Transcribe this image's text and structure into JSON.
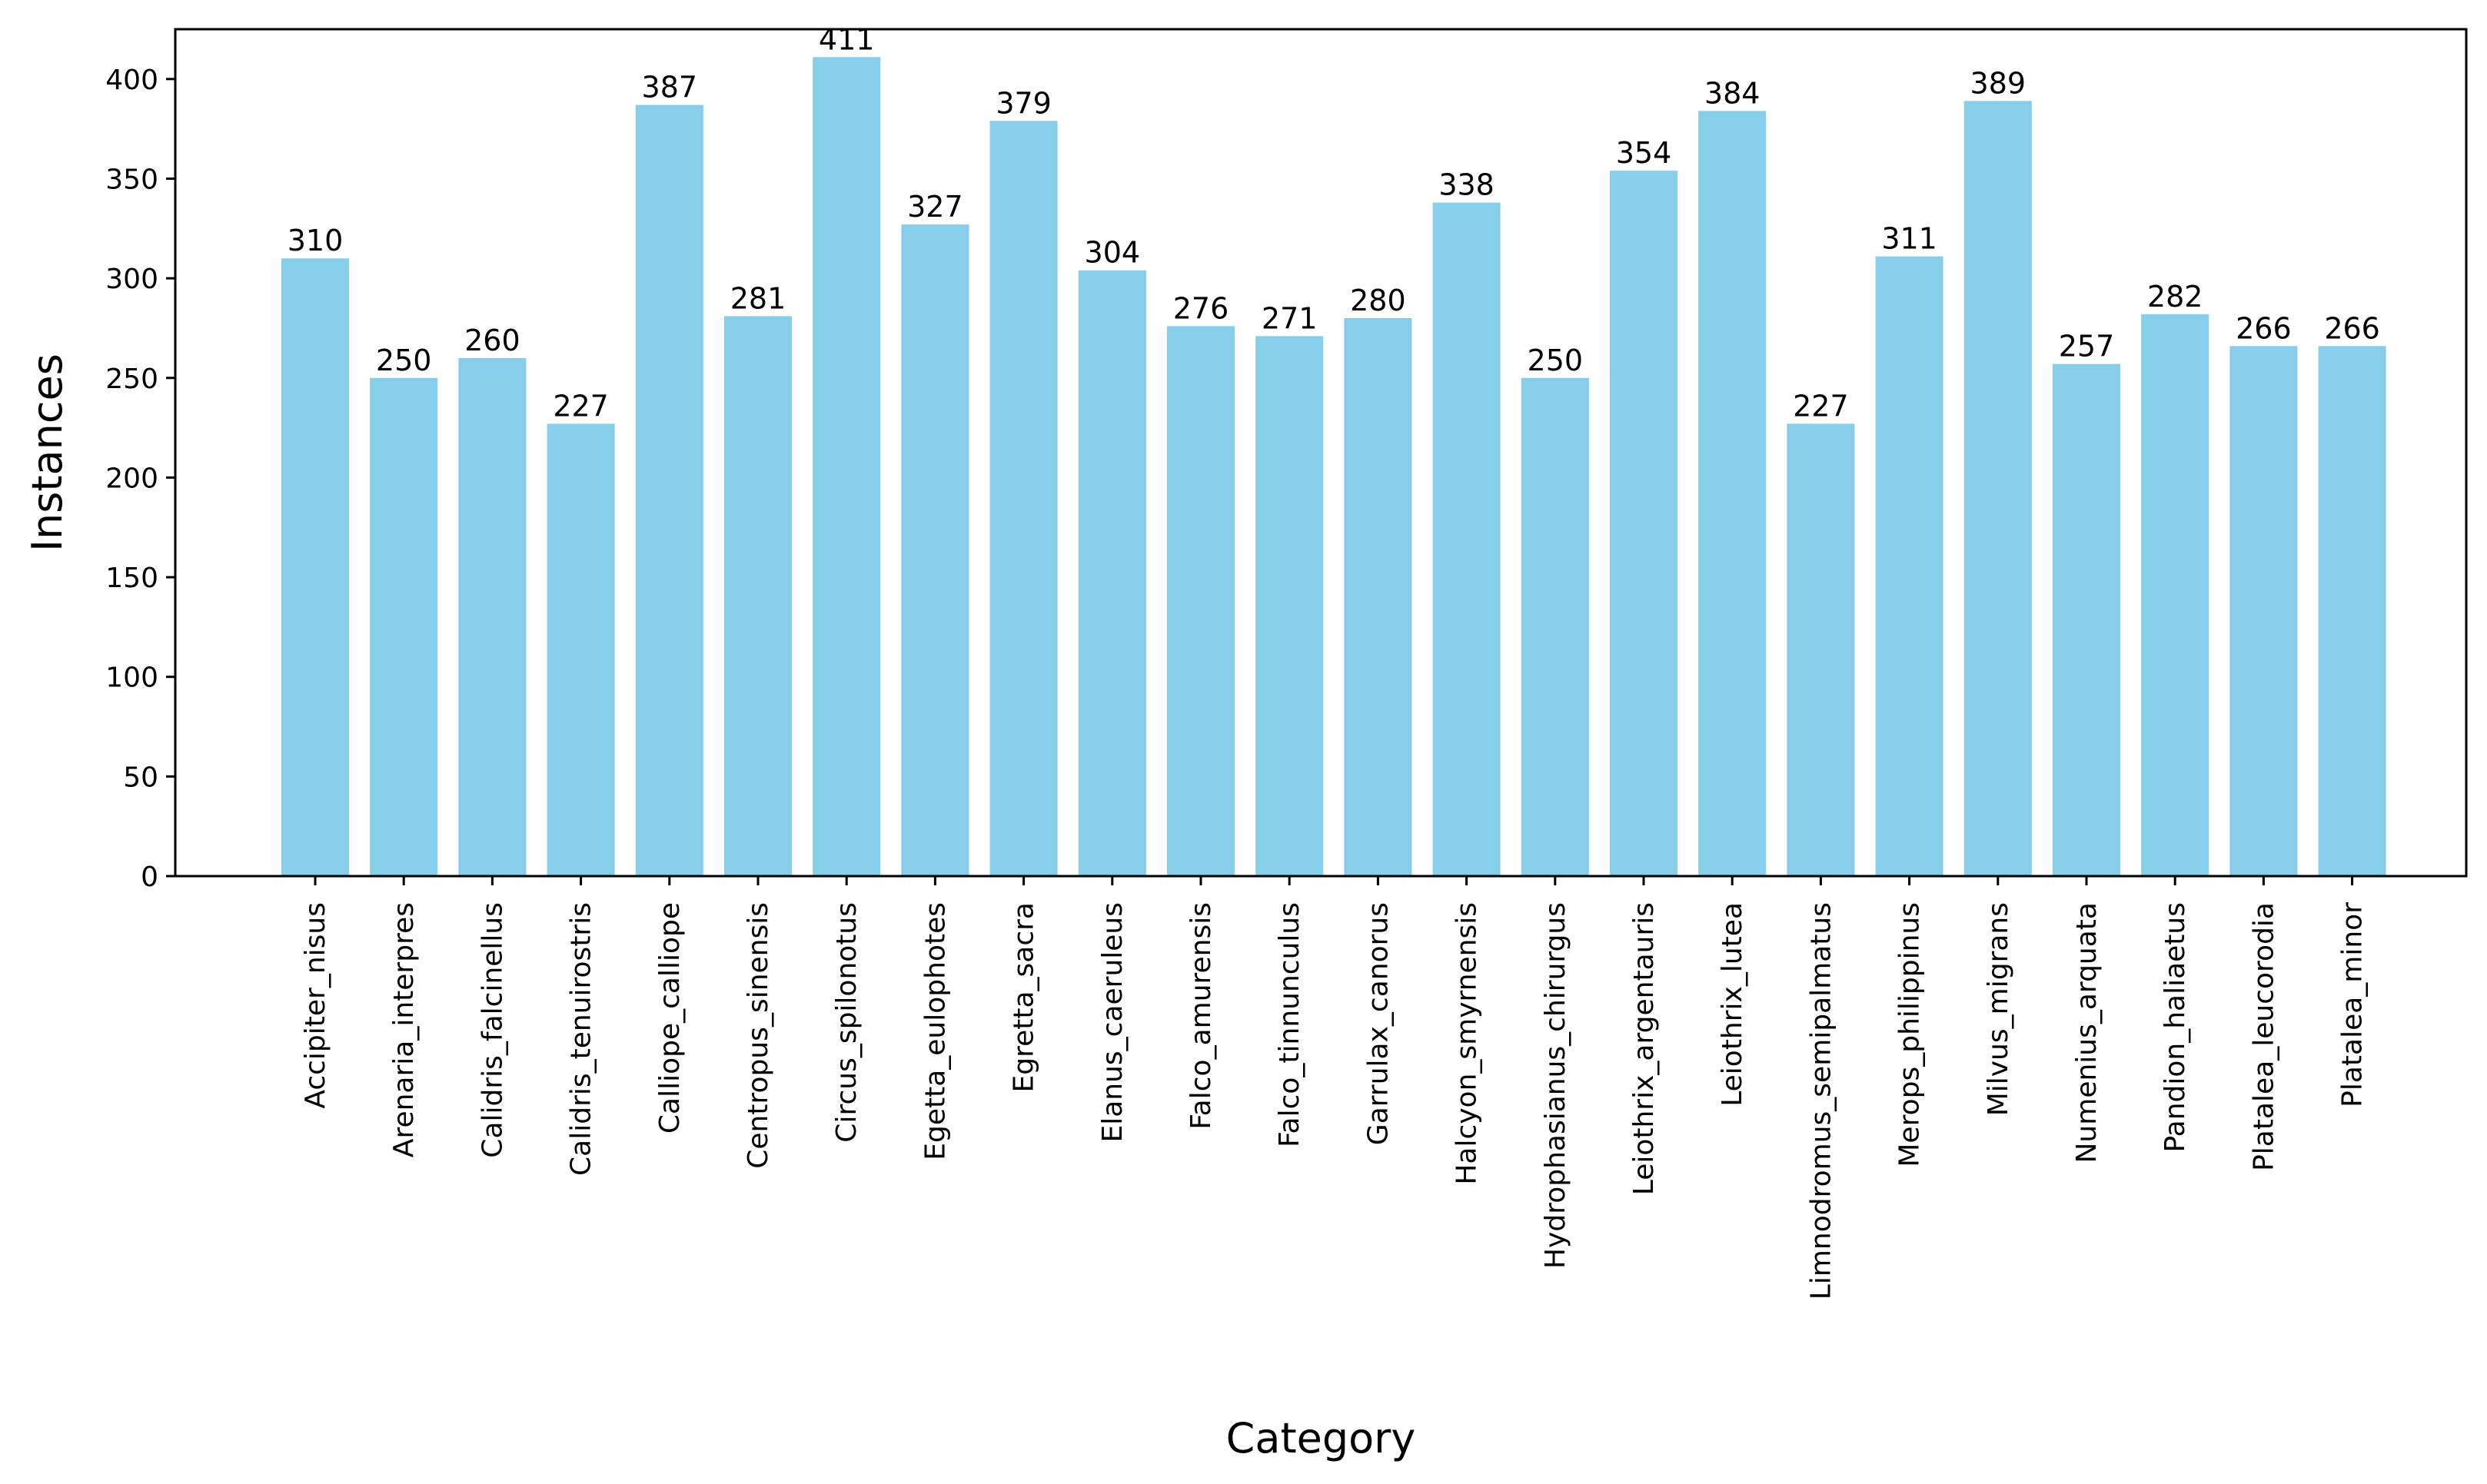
{
  "chart_data": {
    "type": "bar",
    "title": "",
    "xlabel": "Category",
    "ylabel": "Instances",
    "ylim": [
      0,
      425
    ],
    "yticks": [
      0,
      50,
      100,
      150,
      200,
      250,
      300,
      350,
      400
    ],
    "grid": false,
    "legend": "none",
    "bar_color": "#87ceeb",
    "categories": [
      "Accipiter_nisus",
      "Arenaria_interpres",
      "Calidris_falcinellus",
      "Calidris_tenuirostris",
      "Calliope_calliope",
      "Centropus_sinensis",
      "Circus_spilonotus",
      "Egetta_eulophotes",
      "Egretta_sacra",
      "Elanus_caeruleus",
      "Falco_amurensis",
      "Falco_tinnunculus",
      "Garrulax_canorus",
      "Halcyon_smyrnensis",
      "Hydrophasianus_chirurgus",
      "Leiothrix_argentauris",
      "Leiothrix_lutea",
      "Limnodromus_semipalmatus",
      "Merops_philippinus",
      "Milvus_migrans",
      "Numenius_arquata",
      "Pandion_haliaetus",
      "Platalea_leucorodia",
      "Platalea_minor"
    ],
    "values": [
      310,
      250,
      260,
      227,
      387,
      281,
      411,
      327,
      379,
      304,
      276,
      271,
      280,
      338,
      250,
      354,
      384,
      227,
      311,
      389,
      257,
      282,
      266,
      266
    ]
  }
}
